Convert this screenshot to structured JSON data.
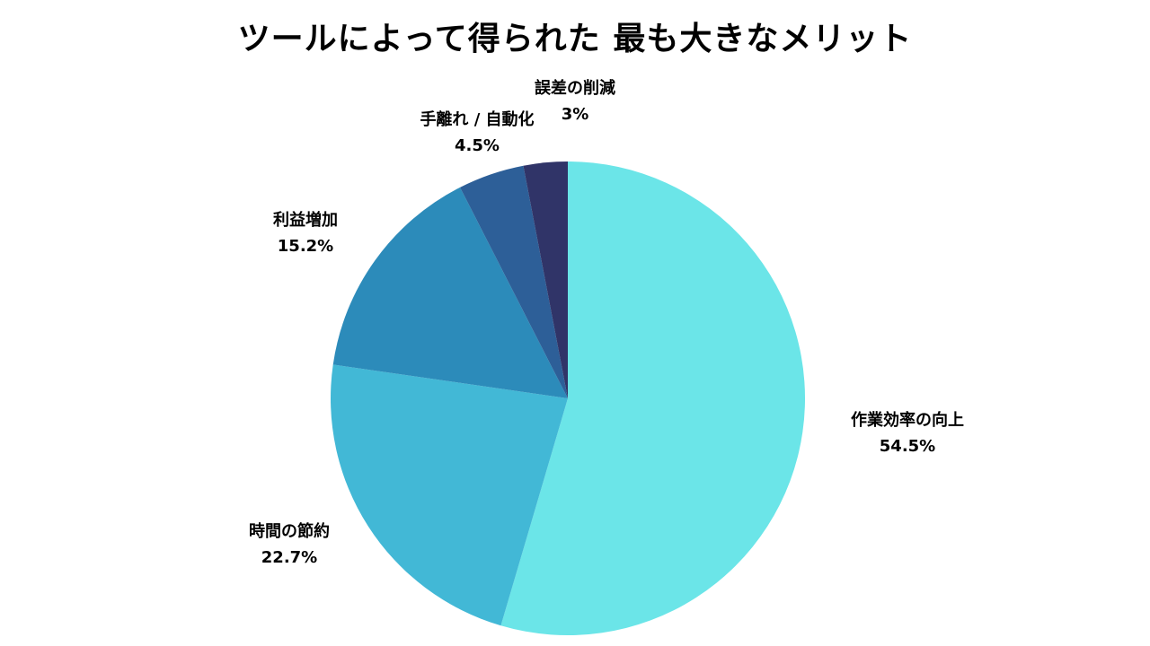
{
  "chart_data": {
    "type": "pie",
    "title": "ツールによって得られた 最も大きなメリット",
    "slices": [
      {
        "label": "作業効率の向上",
        "value": 54.5,
        "value_label": "54.5%",
        "color": "#6be5e8"
      },
      {
        "label": "時間の節約",
        "value": 22.7,
        "value_label": "22.7%",
        "color": "#42b8d6"
      },
      {
        "label": "利益増加",
        "value": 15.2,
        "value_label": "15.2%",
        "color": "#2c8bba"
      },
      {
        "label": "手離れ / 自動化",
        "value": 4.5,
        "value_label": "4.5%",
        "color": "#2d5f98"
      },
      {
        "label": "誤差の削減",
        "value": 3,
        "value_label": "3%",
        "color": "#303468"
      }
    ],
    "start_angle": "12 o'clock",
    "direction": "clockwise",
    "legend": "none"
  }
}
